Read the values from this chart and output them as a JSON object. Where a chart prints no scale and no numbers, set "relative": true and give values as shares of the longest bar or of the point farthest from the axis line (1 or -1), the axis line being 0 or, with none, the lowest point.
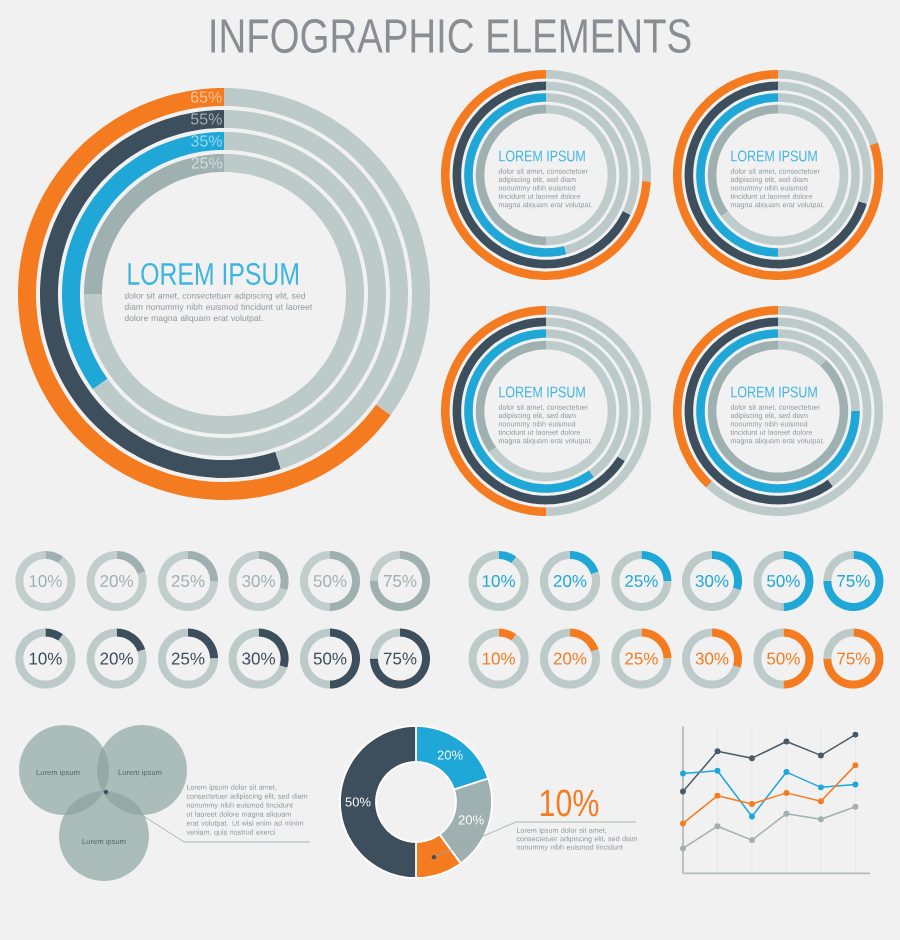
{
  "chart_data": [
    {
      "type": "other",
      "title": "INFOGRAPHIC ELEMENTS"
    },
    {
      "type": "donut",
      "categories": [
        null,
        null
      ],
      "values": [
        65,
        35
      ],
      "colors": [
        "#f47b20",
        "#bccaca"
      ],
      "value_labels": [
        "65%",
        null
      ]
    },
    {
      "type": "donut",
      "categories": [
        null,
        null
      ],
      "values": [
        55,
        45
      ],
      "colors": [
        "#3d4e5c",
        "#bccaca"
      ],
      "value_labels": [
        "55%",
        null
      ]
    },
    {
      "type": "donut",
      "categories": [
        null,
        null
      ],
      "values": [
        35,
        65
      ],
      "colors": [
        "#1fa7d8",
        "#bccaca"
      ],
      "value_labels": [
        "35%",
        null
      ]
    },
    {
      "type": "donut",
      "title": "LOREM IPSUM",
      "subtitle": "dolor sit amet, consectetuer adipiscing elit, sed diam nonummy nibh euismod tincidunt ut laoreet dolore magna aliquam erat volutpat.",
      "categories": [
        null,
        null
      ],
      "values": [
        25,
        75
      ],
      "colors": [
        "#9fb0b0",
        "#bccaca"
      ],
      "value_labels": [
        "25%",
        null
      ]
    },
    {
      "type": "donut",
      "title": "LOREM IPSUM",
      "subtitle": "dolor sit amet, consectetuer adipiscing elit, sed diam nonummy nibh euismod tincidunt ut laoreet dolore magna aliquam erat volutpat.",
      "categories": [
        null,
        null
      ],
      "series": [
        {
          "values": [
            74,
            26
          ],
          "colors": [
            "#f47b20",
            "#bccaca"
          ]
        },
        {
          "values": [
            68,
            32
          ],
          "colors": [
            "#3d4e5c",
            "#bdcbcb"
          ]
        },
        {
          "values": [
            54,
            46
          ],
          "colors": [
            "#1fa7d8",
            "#bbc9c9"
          ]
        },
        {
          "values": [
            50,
            50
          ],
          "colors": [
            "#9fb0b0",
            "#becccc"
          ]
        }
      ]
    },
    {
      "type": "donut",
      "title": "LOREM IPSUM",
      "subtitle": "dolor sit amet, consectetuer adipiscing elit, sed diam nonummy nibh euismod tincidunt ut laoreet dolore magna aliquam erat volutpat.",
      "categories": [
        null,
        null
      ],
      "series": [
        {
          "values": [
            80,
            20
          ],
          "colors": [
            "#f47b20",
            "#bccaca"
          ]
        },
        {
          "values": [
            70,
            30
          ],
          "colors": [
            "#3d4e5c",
            "#bdcbcb"
          ]
        },
        {
          "values": [
            50,
            50
          ],
          "colors": [
            "#1fa7d8",
            "#bbc9c9"
          ]
        },
        {
          "values": [
            35,
            65
          ],
          "colors": [
            "#9fb0b0",
            "#becccc"
          ]
        }
      ]
    },
    {
      "type": "donut",
      "title": "LOREM IPSUM",
      "subtitle": "dolor sit amet, consectetuer adipiscing elit, sed diam nonummy nibh euismod tincidunt ut laoreet dolore magna aliquam erat volutpat.",
      "categories": [
        null,
        null
      ],
      "series": [
        {
          "values": [
            50,
            50
          ],
          "colors": [
            "#f47b20",
            "#bccaca"
          ]
        },
        {
          "values": [
            66,
            34
          ],
          "colors": [
            "#3d4e5c",
            "#bdcbcb"
          ]
        },
        {
          "values": [
            60,
            40
          ],
          "colors": [
            "#1fa7d8",
            "#bbc9c9"
          ]
        },
        {
          "values": [
            35,
            65
          ],
          "colors": [
            "#9fb0b0",
            "#becccc"
          ]
        }
      ]
    },
    {
      "type": "donut",
      "categories": [
        null,
        null
      ],
      "values": [
        38,
        62
      ],
      "colors": [
        "#f47b20",
        "#bccaca"
      ]
    },
    {
      "type": "donut",
      "categories": [
        null,
        null
      ],
      "values": [
        60,
        40
      ],
      "colors": [
        "#3d4e5c",
        "#bccaca"
      ]
    },
    {
      "type": "donut",
      "categories": [
        null,
        null
      ],
      "values": [
        75,
        25
      ],
      "colors": [
        "#1fa7d8",
        "#bccaca"
      ]
    },
    {
      "type": "donut",
      "title": "LOREM IPSUM",
      "subtitle": "dolor sit amet, consectetuer adipiscing elit, sed diam nonummy nibh euismod tincidunt ut laoreet dolore magna aliquam erat volutpat.",
      "categories": [
        null,
        null
      ],
      "values": [
        88,
        12
      ],
      "colors": [
        "#9fb0b0",
        "#bccaca"
      ]
    },
    {
      "type": "donut",
      "title": "10%",
      "categories": [
        null,
        null
      ],
      "values": [
        10,
        90
      ],
      "colors": [
        "#9fb0b0",
        "#c2cece"
      ]
    },
    {
      "type": "donut",
      "title": "20%",
      "categories": [
        null,
        null
      ],
      "values": [
        20,
        80
      ],
      "colors": [
        "#9fb0b0",
        "#c2cece"
      ]
    },
    {
      "type": "donut",
      "title": "25%",
      "categories": [
        null,
        null
      ],
      "values": [
        25,
        75
      ],
      "colors": [
        "#9fb0b0",
        "#c2cece"
      ]
    },
    {
      "type": "donut",
      "title": "30%",
      "categories": [
        null,
        null
      ],
      "values": [
        30,
        70
      ],
      "colors": [
        "#9fb0b0",
        "#c2cece"
      ]
    },
    {
      "type": "donut",
      "title": "50%",
      "categories": [
        null,
        null
      ],
      "values": [
        50,
        50
      ],
      "colors": [
        "#9fb0b0",
        "#c2cece"
      ]
    },
    {
      "type": "donut",
      "title": "75%",
      "categories": [
        null,
        null
      ],
      "values": [
        75,
        25
      ],
      "colors": [
        "#9fb0b0",
        "#c2cece"
      ]
    },
    {
      "type": "donut",
      "title": "10%",
      "categories": [
        null,
        null
      ],
      "values": [
        10,
        90
      ],
      "colors": [
        "#1fa7d8",
        "#bccaca"
      ]
    },
    {
      "type": "donut",
      "title": "20%",
      "categories": [
        null,
        null
      ],
      "values": [
        20,
        80
      ],
      "colors": [
        "#1fa7d8",
        "#bccaca"
      ]
    },
    {
      "type": "donut",
      "title": "25%",
      "categories": [
        null,
        null
      ],
      "values": [
        25,
        75
      ],
      "colors": [
        "#1fa7d8",
        "#bccaca"
      ]
    },
    {
      "type": "donut",
      "title": "30%",
      "categories": [
        null,
        null
      ],
      "values": [
        30,
        70
      ],
      "colors": [
        "#1fa7d8",
        "#bccaca"
      ]
    },
    {
      "type": "donut",
      "title": "50%",
      "categories": [
        null,
        null
      ],
      "values": [
        50,
        50
      ],
      "colors": [
        "#1fa7d8",
        "#bccaca"
      ]
    },
    {
      "type": "donut",
      "title": "75%",
      "categories": [
        null,
        null
      ],
      "values": [
        75,
        25
      ],
      "colors": [
        "#1fa7d8",
        "#bccaca"
      ]
    },
    {
      "type": "donut",
      "title": "10%",
      "categories": [
        null,
        null
      ],
      "values": [
        10,
        90
      ],
      "colors": [
        "#3d4e5c",
        "#bccaca"
      ]
    },
    {
      "type": "donut",
      "title": "20%",
      "categories": [
        null,
        null
      ],
      "values": [
        20,
        80
      ],
      "colors": [
        "#3d4e5c",
        "#bccaca"
      ]
    },
    {
      "type": "donut",
      "title": "25%",
      "categories": [
        null,
        null
      ],
      "values": [
        25,
        75
      ],
      "colors": [
        "#3d4e5c",
        "#bccaca"
      ]
    },
    {
      "type": "donut",
      "title": "30%",
      "categories": [
        null,
        null
      ],
      "values": [
        30,
        70
      ],
      "colors": [
        "#3d4e5c",
        "#bccaca"
      ]
    },
    {
      "type": "donut",
      "title": "50%",
      "categories": [
        null,
        null
      ],
      "values": [
        50,
        50
      ],
      "colors": [
        "#3d4e5c",
        "#bccaca"
      ]
    },
    {
      "type": "donut",
      "title": "75%",
      "categories": [
        null,
        null
      ],
      "values": [
        75,
        25
      ],
      "colors": [
        "#3d4e5c",
        "#bccaca"
      ]
    },
    {
      "type": "donut",
      "title": "10%",
      "categories": [
        null,
        null
      ],
      "values": [
        10,
        90
      ],
      "colors": [
        "#f47b20",
        "#bccaca"
      ]
    },
    {
      "type": "donut",
      "title": "20%",
      "categories": [
        null,
        null
      ],
      "values": [
        20,
        80
      ],
      "colors": [
        "#f47b20",
        "#bccaca"
      ]
    },
    {
      "type": "donut",
      "title": "25%",
      "categories": [
        null,
        null
      ],
      "values": [
        25,
        75
      ],
      "colors": [
        "#f47b20",
        "#bccaca"
      ]
    },
    {
      "type": "donut",
      "title": "30%",
      "categories": [
        null,
        null
      ],
      "values": [
        30,
        70
      ],
      "colors": [
        "#f47b20",
        "#bccaca"
      ]
    },
    {
      "type": "donut",
      "title": "50%",
      "categories": [
        null,
        null
      ],
      "values": [
        50,
        50
      ],
      "colors": [
        "#f47b20",
        "#bccaca"
      ]
    },
    {
      "type": "donut",
      "title": "75%",
      "categories": [
        null,
        null
      ],
      "values": [
        75,
        25
      ],
      "colors": [
        "#f47b20",
        "#bccaca"
      ]
    },
    {
      "type": "other",
      "annotations": [
        "Lorem ipsum",
        "Lorem ipsum",
        "Lorem ipsum",
        "Lorem ipsum dolor sit amet, consectetuer adipiscing elit, sed diam nonummy nibh euismod tincidunt ut laoreet dolore magna aliquam erat volutpat. Ut wisi enim ad minim veniam, quis nostrud exerci"
      ]
    },
    {
      "type": "donut",
      "categories": [
        null,
        null,
        null,
        null
      ],
      "values": [
        20,
        20,
        10,
        50
      ],
      "colors": [
        "#1fa7d8",
        "#9fb0b0",
        "#f47b20",
        "#3d4e5c"
      ],
      "value_labels": [
        "20%",
        "20%",
        "10%",
        "50%"
      ],
      "annotations": [
        "Lorem ipsum dolor sit amet, consectetuer adipiscing elit, sed diam nonummy nibh euismod tincidunt"
      ]
    },
    {
      "type": "line",
      "relative": true,
      "categories": [
        null,
        null,
        null,
        null,
        null,
        null
      ],
      "grid": "x",
      "marker": "circle",
      "line_style": "solid",
      "series": [
        {
          "color": "#4a5a66",
          "values": [
            0.59,
            0.88,
            0.83,
            0.95,
            0.85,
            1.0
          ]
        },
        {
          "color": "#1fa7d8",
          "values": [
            0.72,
            0.74,
            0.41,
            0.73,
            0.62,
            0.64
          ]
        },
        {
          "color": "#f47b20",
          "values": [
            0.36,
            0.56,
            0.5,
            0.58,
            0.52,
            0.78
          ]
        },
        {
          "color": "#a3b0b0",
          "values": [
            0.18,
            0.34,
            0.24,
            0.43,
            0.39,
            0.48
          ]
        }
      ]
    }
  ]
}
